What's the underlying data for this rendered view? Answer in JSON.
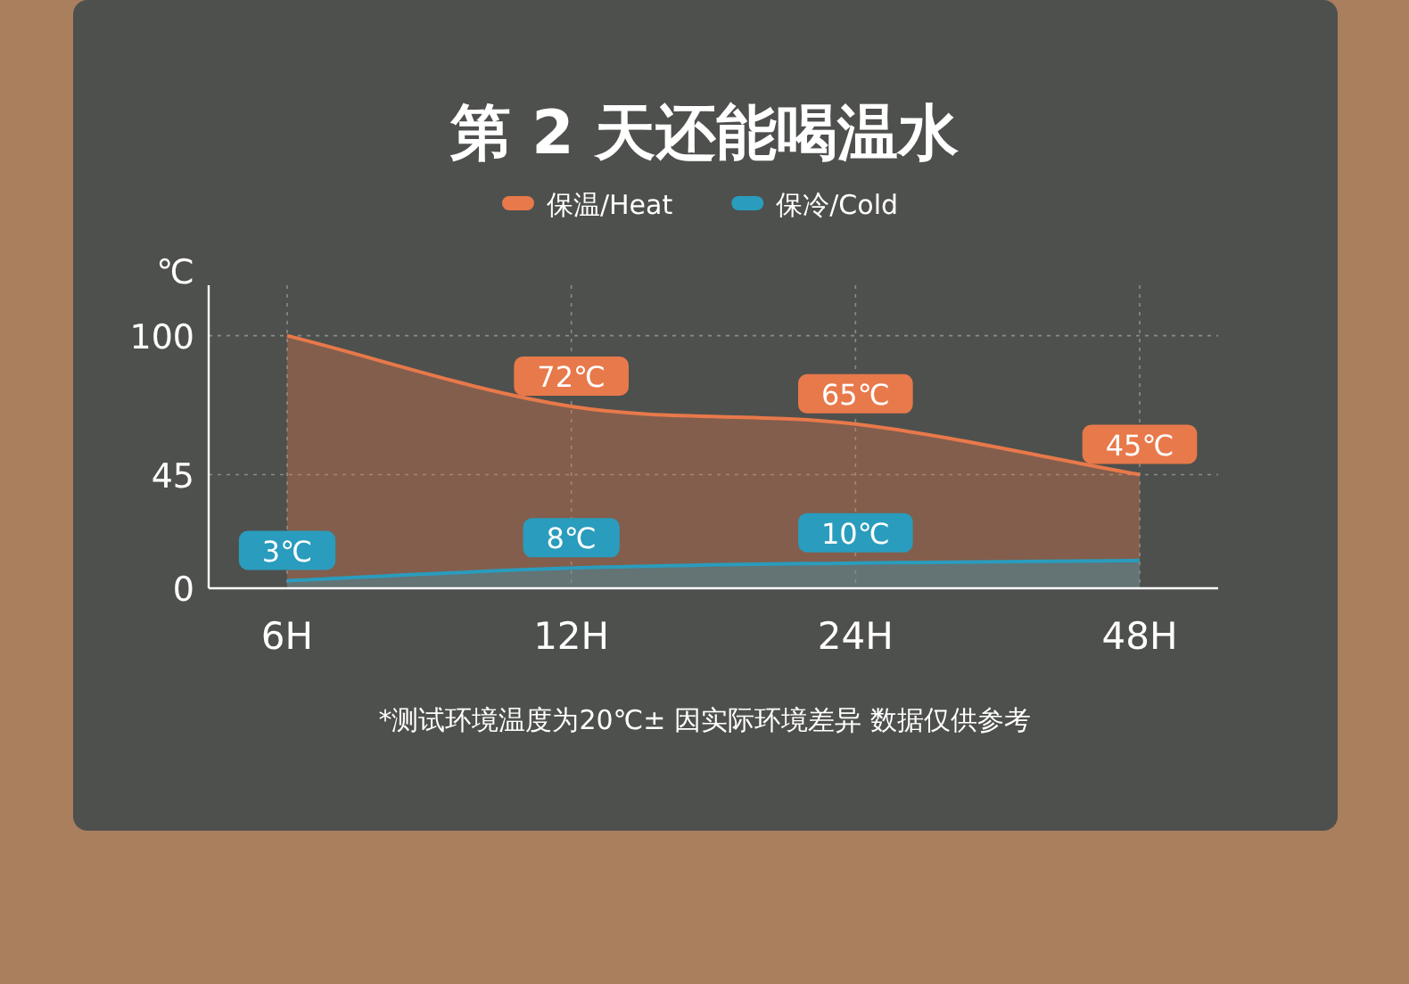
{
  "chart_data": {
    "type": "area",
    "title": "第 2 天还能喝温水",
    "ylabel": "℃",
    "categories": [
      "6H",
      "12H",
      "24H",
      "48H"
    ],
    "series": [
      {
        "name": "保温/Heat",
        "color": "#e8794a",
        "values": [
          100,
          72,
          65,
          45
        ],
        "value_labels": [
          null,
          "72℃",
          "65℃",
          "45℃"
        ]
      },
      {
        "name": "保冷/Cold",
        "color": "#2a9cbd",
        "values": [
          3,
          8,
          10,
          11
        ],
        "value_labels": [
          "3℃",
          "8℃",
          "10℃",
          null
        ]
      }
    ],
    "ylim": [
      0,
      120
    ],
    "yticks": [
      0,
      45,
      100
    ],
    "grid": true,
    "legend": "top",
    "annotations": [
      "*测试环境温度为20℃± 因实际环境差异 数据仅供参考"
    ]
  }
}
